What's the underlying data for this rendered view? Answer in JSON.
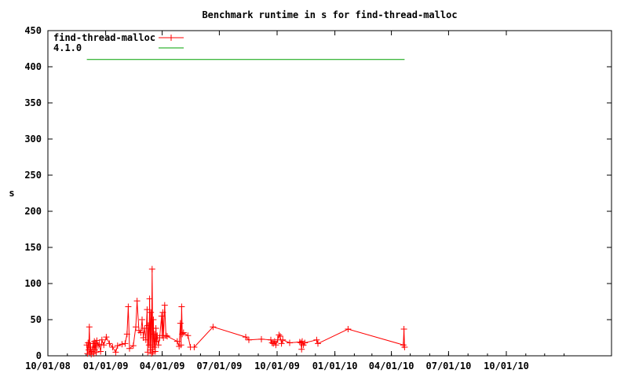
{
  "chart_data": {
    "type": "line",
    "title": "Benchmark runtime in s for find-thread-malloc",
    "ylabel": "s",
    "xlabel": "",
    "ylim": [
      0,
      450
    ],
    "yticks": [
      0,
      50,
      100,
      150,
      200,
      250,
      300,
      350,
      400,
      450
    ],
    "xlim": [
      "2008-10-01",
      "2011-01-31"
    ],
    "xticks": [
      {
        "date": "2008-10-01",
        "label": "10/01/08"
      },
      {
        "date": "2009-01-01",
        "label": "01/01/09"
      },
      {
        "date": "2009-04-01",
        "label": "04/01/09"
      },
      {
        "date": "2009-07-01",
        "label": "07/01/09"
      },
      {
        "date": "2009-10-01",
        "label": "10/01/09"
      },
      {
        "date": "2010-01-01",
        "label": "01/01/10"
      },
      {
        "date": "2010-04-01",
        "label": "04/01/10"
      },
      {
        "date": "2010-07-01",
        "label": "07/01/10"
      },
      {
        "date": "2010-10-01",
        "label": "10/01/10"
      }
    ],
    "legend_position": "top-left",
    "grid": false,
    "series": [
      {
        "name": "find-thread-malloc",
        "color": "#ff0000",
        "marker": "plus",
        "points": [
          [
            "2008-12-02",
            15
          ],
          [
            "2008-12-03",
            3
          ],
          [
            "2008-12-04",
            18
          ],
          [
            "2008-12-05",
            8
          ],
          [
            "2008-12-06",
            40
          ],
          [
            "2008-12-07",
            5
          ],
          [
            "2008-12-08",
            12
          ],
          [
            "2008-12-09",
            2
          ],
          [
            "2008-12-10",
            6
          ],
          [
            "2008-12-12",
            17
          ],
          [
            "2008-12-13",
            3
          ],
          [
            "2008-12-14",
            20
          ],
          [
            "2008-12-15",
            8
          ],
          [
            "2008-12-16",
            18
          ],
          [
            "2008-12-17",
            5
          ],
          [
            "2008-12-18",
            21
          ],
          [
            "2008-12-20",
            14
          ],
          [
            "2008-12-22",
            16
          ],
          [
            "2008-12-24",
            6
          ],
          [
            "2008-12-26",
            22
          ],
          [
            "2008-12-29",
            15
          ],
          [
            "2009-01-02",
            26
          ],
          [
            "2009-01-07",
            17
          ],
          [
            "2009-01-12",
            12
          ],
          [
            "2009-01-17",
            5
          ],
          [
            "2009-01-20",
            14
          ],
          [
            "2009-01-27",
            16
          ],
          [
            "2009-02-01",
            17
          ],
          [
            "2009-02-04",
            30
          ],
          [
            "2009-02-06",
            68
          ],
          [
            "2009-02-08",
            10
          ],
          [
            "2009-02-14",
            14
          ],
          [
            "2009-02-18",
            40
          ],
          [
            "2009-02-20",
            76
          ],
          [
            "2009-02-23",
            35
          ],
          [
            "2009-02-26",
            32
          ],
          [
            "2009-02-28",
            50
          ],
          [
            "2009-03-02",
            25
          ],
          [
            "2009-03-04",
            38
          ],
          [
            "2009-03-06",
            22
          ],
          [
            "2009-03-08",
            64
          ],
          [
            "2009-03-09",
            5
          ],
          [
            "2009-03-10",
            42
          ],
          [
            "2009-03-11",
            15
          ],
          [
            "2009-03-12",
            79
          ],
          [
            "2009-03-13",
            8
          ],
          [
            "2009-03-14",
            60
          ],
          [
            "2009-03-15",
            3
          ],
          [
            "2009-03-16",
            120
          ],
          [
            "2009-03-17",
            5
          ],
          [
            "2009-03-18",
            50
          ],
          [
            "2009-03-19",
            12
          ],
          [
            "2009-03-20",
            30
          ],
          [
            "2009-03-21",
            6
          ],
          [
            "2009-03-22",
            38
          ],
          [
            "2009-03-23",
            20
          ],
          [
            "2009-03-24",
            28
          ],
          [
            "2009-03-26",
            15
          ],
          [
            "2009-03-28",
            25
          ],
          [
            "2009-03-31",
            55
          ],
          [
            "2009-04-01",
            28
          ],
          [
            "2009-04-02",
            60
          ],
          [
            "2009-04-03",
            25
          ],
          [
            "2009-04-05",
            70
          ],
          [
            "2009-04-07",
            28
          ],
          [
            "2009-04-09",
            27
          ],
          [
            "2009-04-25",
            20
          ],
          [
            "2009-04-28",
            13
          ],
          [
            "2009-04-30",
            45
          ],
          [
            "2009-05-01",
            15
          ],
          [
            "2009-05-02",
            68
          ],
          [
            "2009-05-03",
            30
          ],
          [
            "2009-05-05",
            32
          ],
          [
            "2009-05-12",
            28
          ],
          [
            "2009-05-16",
            12
          ],
          [
            "2009-05-22",
            12
          ],
          [
            "2009-06-21",
            40
          ],
          [
            "2009-08-12",
            26
          ],
          [
            "2009-08-17",
            22
          ],
          [
            "2009-09-06",
            23
          ],
          [
            "2009-09-21",
            22
          ],
          [
            "2009-09-23",
            18
          ],
          [
            "2009-09-25",
            17
          ],
          [
            "2009-09-27",
            20
          ],
          [
            "2009-09-29",
            15
          ],
          [
            "2009-10-02",
            22
          ],
          [
            "2009-10-04",
            29
          ],
          [
            "2009-10-06",
            27
          ],
          [
            "2009-10-08",
            17
          ],
          [
            "2009-10-10",
            22
          ],
          [
            "2009-10-21",
            18
          ],
          [
            "2009-11-06",
            19
          ],
          [
            "2009-11-08",
            18
          ],
          [
            "2009-11-09",
            9
          ],
          [
            "2009-11-10",
            20
          ],
          [
            "2009-11-12",
            15
          ],
          [
            "2009-11-14",
            18
          ],
          [
            "2009-12-03",
            22
          ],
          [
            "2009-12-05",
            17
          ],
          [
            "2010-01-22",
            37
          ],
          [
            "2010-04-20",
            15
          ],
          [
            "2010-04-21",
            37
          ],
          [
            "2010-04-22",
            12
          ]
        ]
      },
      {
        "name": "4.1.0",
        "color": "#00a000",
        "marker": "none",
        "points": [
          [
            "2008-12-02",
            410
          ],
          [
            "2010-04-22",
            410
          ]
        ]
      }
    ]
  }
}
